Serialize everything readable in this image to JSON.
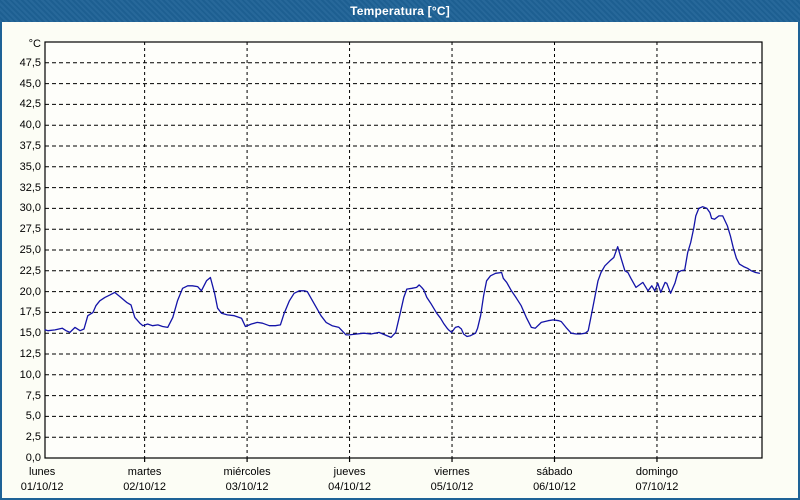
{
  "window": {
    "title": "Temperatura [°C]"
  },
  "colors": {
    "titlebar": "#1e6296",
    "frame": "#1e6296",
    "background": "#fcfdf5",
    "plot_background": "#fefefa",
    "line": "#1414a8",
    "grid": "#000000",
    "text": "#000000"
  },
  "chart_data": {
    "type": "line",
    "title": "Temperatura [°C]",
    "grid": "dashed",
    "legend": "none",
    "y_axis": {
      "unit": "°C",
      "min": 0,
      "max": 50,
      "tick_step": 2.5,
      "tick_labels": [
        "0,0",
        "2,5",
        "5,0",
        "7,5",
        "10,0",
        "12,5",
        "15,0",
        "17,5",
        "20,0",
        "22,5",
        "25,0",
        "27,5",
        "30,0",
        "32,5",
        "35,0",
        "37,5",
        "40,0",
        "42,5",
        "45,0",
        "47,5"
      ]
    },
    "x_axis": {
      "unit": "days",
      "days": [
        {
          "name": "lunes",
          "date": "01/10/12"
        },
        {
          "name": "martes",
          "date": "02/10/12"
        },
        {
          "name": "miércoles",
          "date": "03/10/12"
        },
        {
          "name": "jueves",
          "date": "04/10/12"
        },
        {
          "name": "viernes",
          "date": "05/10/12"
        },
        {
          "name": "sábado",
          "date": "06/10/12"
        },
        {
          "name": "domingo",
          "date": "07/10/12"
        }
      ],
      "hours_span": 168.6
    },
    "series": [
      {
        "name": "Temperatura",
        "color": "#1414a8",
        "points_hours_celsius": [
          [
            0.7,
            15.4
          ],
          [
            1.4,
            15.3
          ],
          [
            3.0,
            15.4
          ],
          [
            4.7,
            15.6
          ],
          [
            5.6,
            15.3
          ],
          [
            6.5,
            15.1
          ],
          [
            7.7,
            15.7
          ],
          [
            8.9,
            15.3
          ],
          [
            9.8,
            15.5
          ],
          [
            10.7,
            17.1
          ],
          [
            11.9,
            17.5
          ],
          [
            12.6,
            18.3
          ],
          [
            13.5,
            18.9
          ],
          [
            14.7,
            19.3
          ],
          [
            15.9,
            19.6
          ],
          [
            17.0,
            19.9
          ],
          [
            18.2,
            19.4
          ],
          [
            19.8,
            18.7
          ],
          [
            20.8,
            18.4
          ],
          [
            21.7,
            16.9
          ],
          [
            22.9,
            16.2
          ],
          [
            23.6,
            15.9
          ],
          [
            24.7,
            16.1
          ],
          [
            25.9,
            15.9
          ],
          [
            27.1,
            16.0
          ],
          [
            28.2,
            15.8
          ],
          [
            29.4,
            15.7
          ],
          [
            30.6,
            16.9
          ],
          [
            31.7,
            18.9
          ],
          [
            32.9,
            20.4
          ],
          [
            34.1,
            20.7
          ],
          [
            35.2,
            20.7
          ],
          [
            36.4,
            20.6
          ],
          [
            37.3,
            20.1
          ],
          [
            38.5,
            21.3
          ],
          [
            39.4,
            21.7
          ],
          [
            40.4,
            19.8
          ],
          [
            41.1,
            18.0
          ],
          [
            42.0,
            17.4
          ],
          [
            43.4,
            17.2
          ],
          [
            45.0,
            17.1
          ],
          [
            46.7,
            16.8
          ],
          [
            47.6,
            15.8
          ],
          [
            49.0,
            16.1
          ],
          [
            50.4,
            16.3
          ],
          [
            51.6,
            16.2
          ],
          [
            53.2,
            15.9
          ],
          [
            54.6,
            15.9
          ],
          [
            55.8,
            16.0
          ],
          [
            56.7,
            17.4
          ],
          [
            57.9,
            18.9
          ],
          [
            59.0,
            19.8
          ],
          [
            60.2,
            20.1
          ],
          [
            61.4,
            20.1
          ],
          [
            62.1,
            20.0
          ],
          [
            63.0,
            19.2
          ],
          [
            64.2,
            18.1
          ],
          [
            65.3,
            17.1
          ],
          [
            66.5,
            16.3
          ],
          [
            67.9,
            15.9
          ],
          [
            69.5,
            15.7
          ],
          [
            71.2,
            14.8
          ],
          [
            71.9,
            14.8
          ],
          [
            73.7,
            14.9
          ],
          [
            75.4,
            15.0
          ],
          [
            77.0,
            14.9
          ],
          [
            78.9,
            15.1
          ],
          [
            80.3,
            14.8
          ],
          [
            81.7,
            14.5
          ],
          [
            82.8,
            15.1
          ],
          [
            84.0,
            17.7
          ],
          [
            84.7,
            19.3
          ],
          [
            85.4,
            20.3
          ],
          [
            86.6,
            20.4
          ],
          [
            87.7,
            20.5
          ],
          [
            88.3,
            20.8
          ],
          [
            88.9,
            20.5
          ],
          [
            89.4,
            20.2
          ],
          [
            90.1,
            19.3
          ],
          [
            91.0,
            18.6
          ],
          [
            91.7,
            18.0
          ],
          [
            92.4,
            17.4
          ],
          [
            93.3,
            16.8
          ],
          [
            94.0,
            16.2
          ],
          [
            94.7,
            15.7
          ],
          [
            95.2,
            15.4
          ],
          [
            95.9,
            15.1
          ],
          [
            96.8,
            15.7
          ],
          [
            97.5,
            15.8
          ],
          [
            98.2,
            15.5
          ],
          [
            98.7,
            14.9
          ],
          [
            99.5,
            14.6
          ],
          [
            100.3,
            14.7
          ],
          [
            101.5,
            15.0
          ],
          [
            102.0,
            15.6
          ],
          [
            102.7,
            17.1
          ],
          [
            103.4,
            19.5
          ],
          [
            104.1,
            21.3
          ],
          [
            105.0,
            21.9
          ],
          [
            106.2,
            22.2
          ],
          [
            107.6,
            22.3
          ],
          [
            108.0,
            21.6
          ],
          [
            108.8,
            21.1
          ],
          [
            109.9,
            20.1
          ],
          [
            111.1,
            19.2
          ],
          [
            112.2,
            18.3
          ],
          [
            113.4,
            16.9
          ],
          [
            114.6,
            15.7
          ],
          [
            115.5,
            15.6
          ],
          [
            116.9,
            16.3
          ],
          [
            118.5,
            16.5
          ],
          [
            119.7,
            16.6
          ],
          [
            121.0,
            16.5
          ],
          [
            121.6,
            16.4
          ],
          [
            122.7,
            15.7
          ],
          [
            123.9,
            15.0
          ],
          [
            125.1,
            14.9
          ],
          [
            126.0,
            14.9
          ],
          [
            127.2,
            15.0
          ],
          [
            127.9,
            15.3
          ],
          [
            128.6,
            17.1
          ],
          [
            129.5,
            19.5
          ],
          [
            130.2,
            21.3
          ],
          [
            130.9,
            22.3
          ],
          [
            131.8,
            23.1
          ],
          [
            133.0,
            23.7
          ],
          [
            133.9,
            24.1
          ],
          [
            134.8,
            25.4
          ],
          [
            135.6,
            24.0
          ],
          [
            136.5,
            22.5
          ],
          [
            137.2,
            22.3
          ],
          [
            137.9,
            21.6
          ],
          [
            139.1,
            20.5
          ],
          [
            140.7,
            21.1
          ],
          [
            141.9,
            20.1
          ],
          [
            142.8,
            20.7
          ],
          [
            143.5,
            20.1
          ],
          [
            144.2,
            21.0
          ],
          [
            144.9,
            19.9
          ],
          [
            145.9,
            21.1
          ],
          [
            146.3,
            21.0
          ],
          [
            147.2,
            19.8
          ],
          [
            148.2,
            21.0
          ],
          [
            148.9,
            22.3
          ],
          [
            149.6,
            22.5
          ],
          [
            150.5,
            22.6
          ],
          [
            151.2,
            24.7
          ],
          [
            151.9,
            25.9
          ],
          [
            152.6,
            27.6
          ],
          [
            153.1,
            29.1
          ],
          [
            153.8,
            30.0
          ],
          [
            154.7,
            30.2
          ],
          [
            155.7,
            30.0
          ],
          [
            156.4,
            29.5
          ],
          [
            156.8,
            28.8
          ],
          [
            157.5,
            28.7
          ],
          [
            158.5,
            29.1
          ],
          [
            159.4,
            29.1
          ],
          [
            160.5,
            27.9
          ],
          [
            161.2,
            26.7
          ],
          [
            161.9,
            25.2
          ],
          [
            162.6,
            24.0
          ],
          [
            163.3,
            23.3
          ],
          [
            164.3,
            23.0
          ],
          [
            165.2,
            22.8
          ],
          [
            166.1,
            22.5
          ],
          [
            167.1,
            22.3
          ],
          [
            168.0,
            22.2
          ]
        ]
      }
    ]
  }
}
